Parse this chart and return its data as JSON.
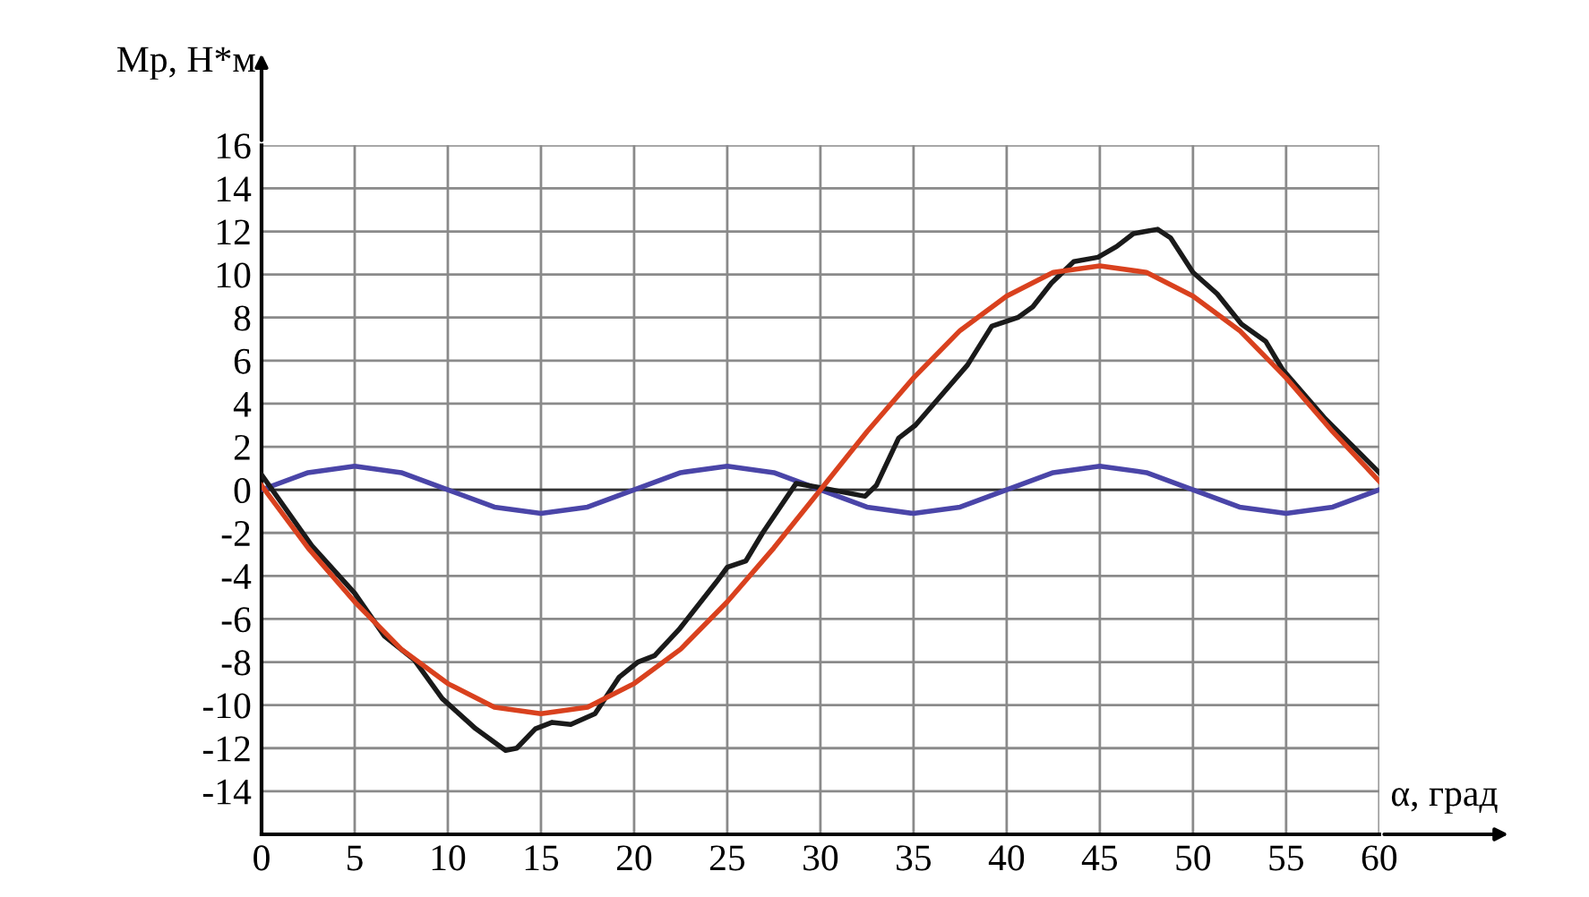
{
  "chart_data": {
    "type": "line",
    "xlabel": "α, град",
    "ylabel": "Мр, Н*м",
    "xlim": [
      0,
      60
    ],
    "ylim": [
      -16,
      16
    ],
    "xticks": [
      0,
      5,
      10,
      15,
      20,
      25,
      30,
      35,
      40,
      45,
      50,
      55,
      60
    ],
    "yticks": [
      -14,
      -12,
      -10,
      -8,
      -6,
      -4,
      -2,
      0,
      2,
      4,
      6,
      8,
      10,
      12,
      14,
      16
    ],
    "grid": true,
    "marker": "none",
    "line_style": "solid",
    "series": [
      {
        "color": "#4a45a8",
        "x": [
          0,
          2.5,
          5,
          7.5,
          10,
          12.5,
          15,
          17.5,
          20,
          22.5,
          25,
          27.5,
          30,
          32.5,
          35,
          37.5,
          40,
          42.5,
          45,
          47.5,
          50,
          52.5,
          55,
          57.5,
          60
        ],
        "values": [
          0,
          0.8,
          1.1,
          0.8,
          0,
          -0.8,
          -1.1,
          -0.8,
          0,
          0.8,
          1.1,
          0.8,
          0,
          -0.8,
          -1.1,
          -0.8,
          0,
          0.8,
          1.1,
          0.8,
          0,
          -0.8,
          -1.1,
          -0.8,
          0
        ]
      },
      {
        "color": "#1a1a1a",
        "x": [
          0,
          2.7,
          5,
          6.6,
          8.2,
          9.7,
          11.5,
          13.1,
          13.7,
          14.7,
          15.6,
          16.6,
          17.9,
          19.2,
          20.2,
          21.1,
          22.4,
          24.4,
          25,
          26,
          26.9,
          28.7,
          30,
          32.4,
          33,
          34.2,
          35.1,
          35.9,
          37.9,
          39.2,
          40.6,
          41.4,
          42.4,
          43.6,
          44.9,
          45.9,
          46.8,
          48.1,
          48.8,
          50,
          51.3,
          52.6,
          53.9,
          54.8,
          57.1,
          60
        ],
        "values": [
          0.7,
          -2.6,
          -4.8,
          -6.8,
          -7.9,
          -9.7,
          -11.1,
          -12.1,
          -12.0,
          -11.1,
          -10.8,
          -10.9,
          -10.4,
          -8.7,
          -8.0,
          -7.7,
          -6.5,
          -4.3,
          -3.6,
          -3.3,
          -2.0,
          0.3,
          0.1,
          -0.3,
          0.2,
          2.4,
          3.0,
          3.8,
          5.8,
          7.6,
          8.0,
          8.5,
          9.6,
          10.6,
          10.8,
          11.3,
          11.9,
          12.1,
          11.7,
          10.1,
          9.1,
          7.7,
          6.9,
          5.6,
          3.3,
          0.8
        ]
      },
      {
        "color": "#d9411e",
        "x": [
          0,
          2.5,
          5,
          7.5,
          10,
          12.5,
          15,
          17.5,
          20,
          22.5,
          25,
          27.5,
          30,
          32.5,
          35,
          37.5,
          40,
          42.5,
          45,
          47.5,
          50,
          52.5,
          55,
          57.5,
          60
        ],
        "values": [
          0.2,
          -2.7,
          -5.2,
          -7.4,
          -9.0,
          -10.1,
          -10.4,
          -10.1,
          -9.0,
          -7.4,
          -5.2,
          -2.7,
          0,
          2.7,
          5.2,
          7.4,
          9.0,
          10.1,
          10.4,
          10.1,
          9.0,
          7.4,
          5.2,
          2.7,
          0.4
        ]
      }
    ]
  }
}
